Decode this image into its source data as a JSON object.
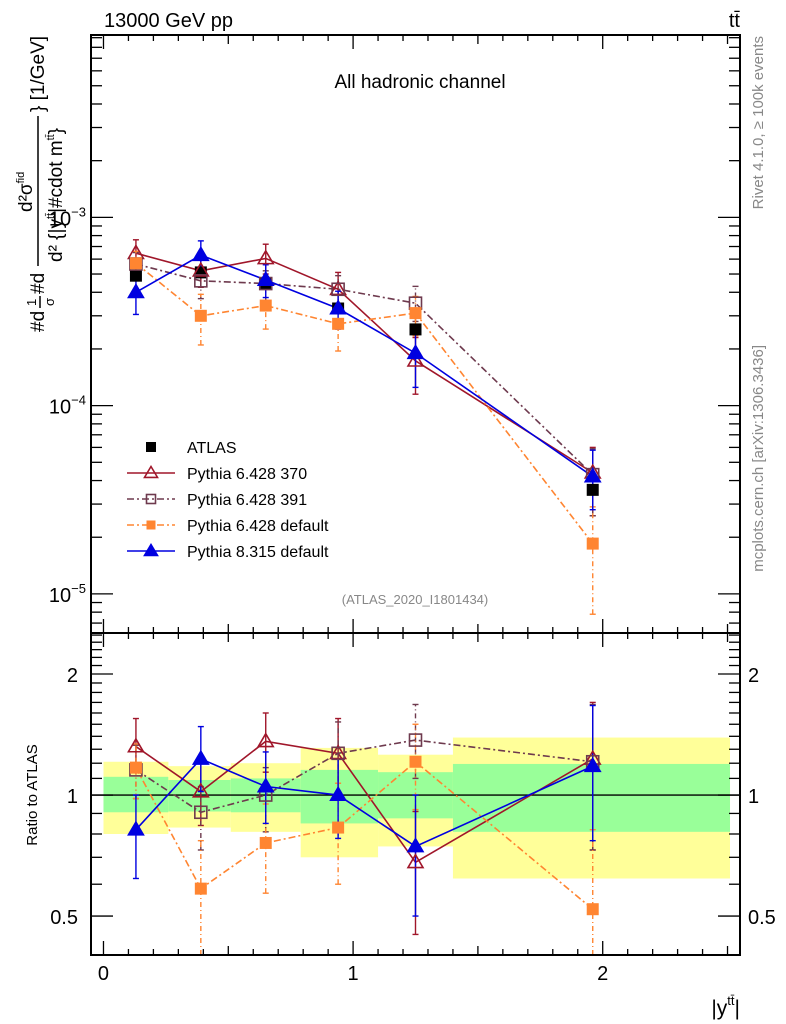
{
  "header": {
    "left": "13000 GeV pp",
    "right": "tt̄"
  },
  "side_labels": {
    "upper": "Rivet 4.1.0, ≥ 100k events",
    "lower": "mcplots.cern.ch [arXiv:1306.3436]"
  },
  "chart_data": [
    {
      "type": "line",
      "title": "All hadronic channel",
      "annotation": "(ATLAS_2020_I1801434)",
      "xlabel": "|y^{t̄t}|",
      "ylabel": "#d¹/σ #d d²σ^{fid} / d²{|y^{t̄t}|#cdot m^{t̄t}} [1/GeV]",
      "yscale": "log",
      "xlim": [
        -0.05,
        2.55
      ],
      "ylim": [
        6.2e-06,
        0.0093
      ],
      "y_tick_labels": [
        {
          "value": 0.001,
          "base": "10",
          "exp": "−3"
        },
        {
          "value": 0.0001,
          "base": "10",
          "exp": "−4"
        },
        {
          "value": 1e-05,
          "base": "10",
          "exp": "−5"
        }
      ],
      "legend_position": "bottom-left",
      "x": [
        0.13,
        0.39,
        0.65,
        0.94,
        1.25,
        1.96
      ],
      "series": [
        {
          "name": "ATLAS",
          "color": "#000000",
          "marker": "square-filled",
          "line": "none",
          "values": [
            0.00049,
            0.00051,
            0.000445,
            0.000328,
            0.000254,
            3.57e-05
          ]
        },
        {
          "name": "Pythia 6.428 370",
          "color": "#a0162a",
          "marker": "triangle-open",
          "line": "solid",
          "values": [
            0.000645,
            0.00052,
            0.000605,
            0.000415,
            0.000173,
            4.4e-05
          ],
          "err_low": [
            0.000555,
            0.000425,
            0.0005,
            0.00033,
            0.000115,
            2.6e-05
          ],
          "err_high": [
            0.00076,
            0.00061,
            0.00072,
            0.00051,
            0.00023,
            6e-05
          ]
        },
        {
          "name": "Pythia 6.428 391",
          "color": "#6e3a4e",
          "marker": "square-open",
          "line": "dashdot",
          "values": [
            0.000565,
            0.00046,
            0.000445,
            0.000415,
            0.00035,
            4.3e-05
          ],
          "err_low": [
            0.00048,
            0.00037,
            0.00036,
            0.00033,
            0.00028,
            2.6e-05
          ],
          "err_high": [
            0.00065,
            0.00053,
            0.00052,
            0.00049,
            0.00043,
            5.9e-05
          ]
        },
        {
          "name": "Pythia 6.428 default",
          "color": "#ff8531",
          "marker": "square-filled",
          "line": "dashdot",
          "values": [
            0.00057,
            0.0003,
            0.00034,
            0.000272,
            0.00031,
            1.85e-05
          ],
          "err_low": [
            0.00048,
            0.00021,
            0.000255,
            0.000195,
            0.000235,
            7.8e-06
          ],
          "err_high": [
            0.00066,
            0.00039,
            0.00042,
            0.00035,
            0.00038,
            2.9e-05
          ]
        },
        {
          "name": "Pythia 8.315 default",
          "color": "#0000e0",
          "marker": "triangle-filled",
          "line": "solid",
          "values": [
            0.0004,
            0.00063,
            0.000465,
            0.000328,
            0.00019,
            4.2e-05
          ],
          "err_low": [
            0.000305,
            0.00052,
            0.000375,
            0.000255,
            0.000125,
            2.8e-05
          ],
          "err_high": [
            0.000495,
            0.00075,
            0.00056,
            0.000405,
            0.000255,
            5.8e-05
          ]
        }
      ]
    },
    {
      "type": "line",
      "ylabel": "Ratio to ATLAS",
      "xlabel": "|y^{t̄t}|",
      "yscale": "log",
      "xlim": [
        -0.05,
        2.55
      ],
      "ylim": [
        0.4,
        2.53
      ],
      "y_tick_labels": [
        {
          "value": 0.5,
          "text": "0.5"
        },
        {
          "value": 1,
          "text": "1"
        },
        {
          "value": 2,
          "text": "2"
        }
      ],
      "x_tick_labels": [
        {
          "value": 0,
          "text": "0"
        },
        {
          "value": 1,
          "text": "1"
        },
        {
          "value": 2,
          "text": "2"
        }
      ],
      "reference_line": 1,
      "bands": {
        "edges": [
          0,
          0.26,
          0.51,
          0.79,
          1.1,
          1.4,
          2.51
        ],
        "inner": {
          "color": "#99ff99",
          "low": [
            0.906,
            0.91,
            0.906,
            0.85,
            0.875,
            0.81
          ],
          "high": [
            1.11,
            1.09,
            1.1,
            1.155,
            1.14,
            1.195
          ]
        },
        "outer": {
          "color": "#ffff99",
          "low": [
            0.8,
            0.83,
            0.81,
            0.7,
            0.745,
            0.62
          ],
          "high": [
            1.21,
            1.18,
            1.2,
            1.31,
            1.26,
            1.39
          ]
        }
      },
      "x": [
        0.13,
        0.39,
        0.65,
        0.94,
        1.25,
        1.96
      ],
      "series": [
        {
          "name": "Pythia 6.428 370",
          "values": [
            1.32,
            1.02,
            1.36,
            1.27,
            0.68,
            1.23
          ],
          "err_low": [
            1.14,
            0.84,
            1.14,
            1.02,
            0.45,
            0.73
          ],
          "err_high": [
            1.55,
            1.2,
            1.6,
            1.55,
            0.91,
            1.7
          ]
        },
        {
          "name": "Pythia 6.428 391",
          "values": [
            1.155,
            0.906,
            1.0,
            1.27,
            1.37,
            1.21
          ],
          "err_low": [
            0.98,
            0.73,
            0.81,
            1.01,
            1.1,
            0.73
          ],
          "err_high": [
            1.33,
            1.05,
            1.17,
            1.52,
            1.68,
            1.68
          ]
        },
        {
          "name": "Pythia 6.428 default",
          "values": [
            1.17,
            0.585,
            0.76,
            0.83,
            1.21,
            0.52
          ],
          "err_low": [
            0.98,
            0.4,
            0.57,
            0.6,
            0.92,
            0.4
          ],
          "err_high": [
            1.34,
            0.77,
            0.95,
            1.07,
            1.5,
            0.82
          ]
        },
        {
          "name": "Pythia 8.315 default",
          "values": [
            0.82,
            1.23,
            1.05,
            1.0,
            0.745,
            1.18
          ],
          "err_low": [
            0.62,
            1.02,
            0.85,
            0.78,
            0.5,
            0.77
          ],
          "err_high": [
            1.0,
            1.48,
            1.28,
            1.23,
            1.0,
            1.67
          ]
        }
      ]
    }
  ]
}
